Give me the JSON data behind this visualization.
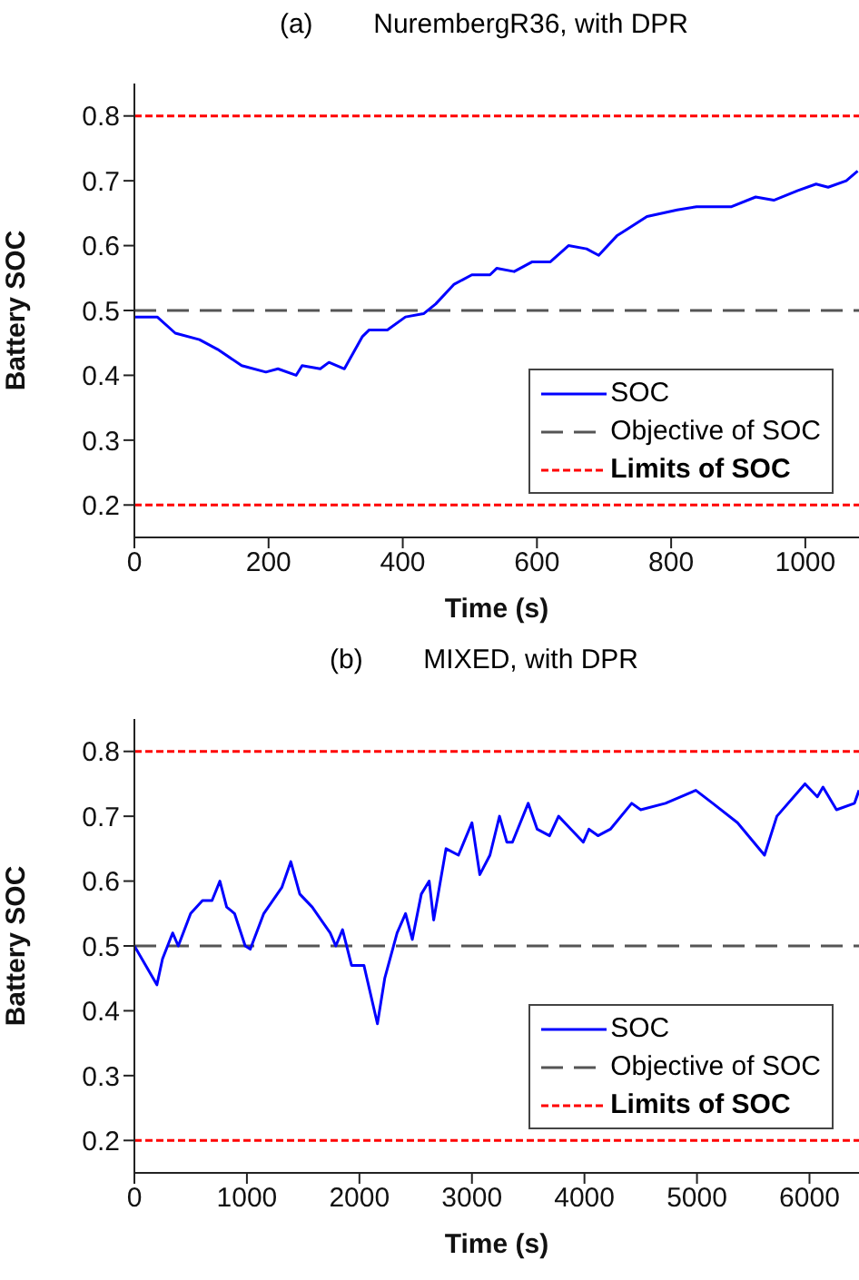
{
  "chart_data": [
    {
      "type": "line",
      "title": "(a)        NurembergR36, with DPR",
      "xlabel": "Time (s)",
      "ylabel": "Battery SOC",
      "xlim": [
        0,
        1080
      ],
      "xticks": [
        0,
        200,
        400,
        600,
        800,
        1000
      ],
      "ylim": [
        0.15,
        0.85
      ],
      "yticks": [
        0.2,
        0.3,
        0.4,
        0.5,
        0.6,
        0.7,
        0.8
      ],
      "legend": "bottom right",
      "grid": false,
      "series": [
        {
          "name": "SOC",
          "color": "#0000ff",
          "x": [
            0,
            34,
            61,
            97,
            124,
            160,
            196,
            214,
            241,
            250,
            277,
            290,
            313,
            340,
            350,
            377,
            404,
            431,
            449,
            476,
            503,
            530,
            540,
            566,
            593,
            620,
            647,
            674,
            692,
            719,
            764,
            809,
            838,
            890,
            926,
            953,
            989,
            1016,
            1034,
            1061,
            1078
          ],
          "values": [
            0.49,
            0.49,
            0.465,
            0.455,
            0.44,
            0.415,
            0.405,
            0.41,
            0.4,
            0.415,
            0.41,
            0.42,
            0.41,
            0.46,
            0.47,
            0.47,
            0.49,
            0.495,
            0.51,
            0.54,
            0.555,
            0.555,
            0.565,
            0.56,
            0.575,
            0.575,
            0.6,
            0.595,
            0.585,
            0.615,
            0.645,
            0.655,
            0.66,
            0.66,
            0.675,
            0.67,
            0.685,
            0.695,
            0.69,
            0.7,
            0.715
          ]
        }
      ],
      "ref_lines": [
        {
          "axis": "y",
          "value": 0.5,
          "label": "Objective of SOC",
          "color": "#555555",
          "line_style": "dashed"
        },
        {
          "axis": "y",
          "value": 0.8,
          "label": "Limits of SOC",
          "color": "#ff0000",
          "line_style": "dotted"
        },
        {
          "axis": "y",
          "value": 0.2,
          "color": "#ff0000",
          "line_style": "dotted"
        }
      ]
    },
    {
      "type": "line",
      "title": "(b)        MIXED, with DPR",
      "xlabel": "Time (s)",
      "ylabel": "Battery SOC",
      "xlim": [
        0,
        6440
      ],
      "xticks": [
        0,
        1000,
        2000,
        3000,
        4000,
        5000,
        6000
      ],
      "ylim": [
        0.15,
        0.85
      ],
      "yticks": [
        0.2,
        0.3,
        0.4,
        0.5,
        0.6,
        0.7,
        0.8
      ],
      "legend": "bottom right",
      "grid": false,
      "series": [
        {
          "name": "SOC",
          "color": "#0000ff",
          "x": [
            0,
            200,
            250,
            340,
            390,
            500,
            605,
            690,
            760,
            820,
            890,
            985,
            1030,
            1150,
            1310,
            1390,
            1470,
            1580,
            1740,
            1790,
            1850,
            1930,
            2040,
            2160,
            2225,
            2335,
            2410,
            2470,
            2550,
            2620,
            2660,
            2770,
            2880,
            3000,
            3070,
            3160,
            3245,
            3310,
            3360,
            3500,
            3580,
            3690,
            3770,
            3880,
            3990,
            4040,
            4120,
            4230,
            4420,
            4500,
            4720,
            4990,
            5140,
            5360,
            5600,
            5710,
            5960,
            6070,
            6120,
            6240,
            6400,
            6440
          ],
          "values": [
            0.5,
            0.44,
            0.48,
            0.52,
            0.5,
            0.55,
            0.57,
            0.57,
            0.6,
            0.56,
            0.55,
            0.5,
            0.495,
            0.55,
            0.59,
            0.63,
            0.58,
            0.56,
            0.52,
            0.5,
            0.525,
            0.47,
            0.47,
            0.38,
            0.45,
            0.52,
            0.55,
            0.51,
            0.58,
            0.6,
            0.54,
            0.65,
            0.64,
            0.69,
            0.61,
            0.64,
            0.7,
            0.66,
            0.66,
            0.72,
            0.68,
            0.67,
            0.7,
            0.68,
            0.66,
            0.68,
            0.67,
            0.68,
            0.72,
            0.71,
            0.72,
            0.74,
            0.72,
            0.69,
            0.64,
            0.7,
            0.75,
            0.73,
            0.745,
            0.71,
            0.72,
            0.74
          ]
        }
      ],
      "ref_lines": [
        {
          "axis": "y",
          "value": 0.5,
          "label": "Objective of SOC",
          "color": "#555555",
          "line_style": "dashed"
        },
        {
          "axis": "y",
          "value": 0.8,
          "label": "Limits of SOC",
          "color": "#ff0000",
          "line_style": "dotted"
        },
        {
          "axis": "y",
          "value": 0.2,
          "color": "#ff0000",
          "line_style": "dotted"
        }
      ]
    }
  ]
}
